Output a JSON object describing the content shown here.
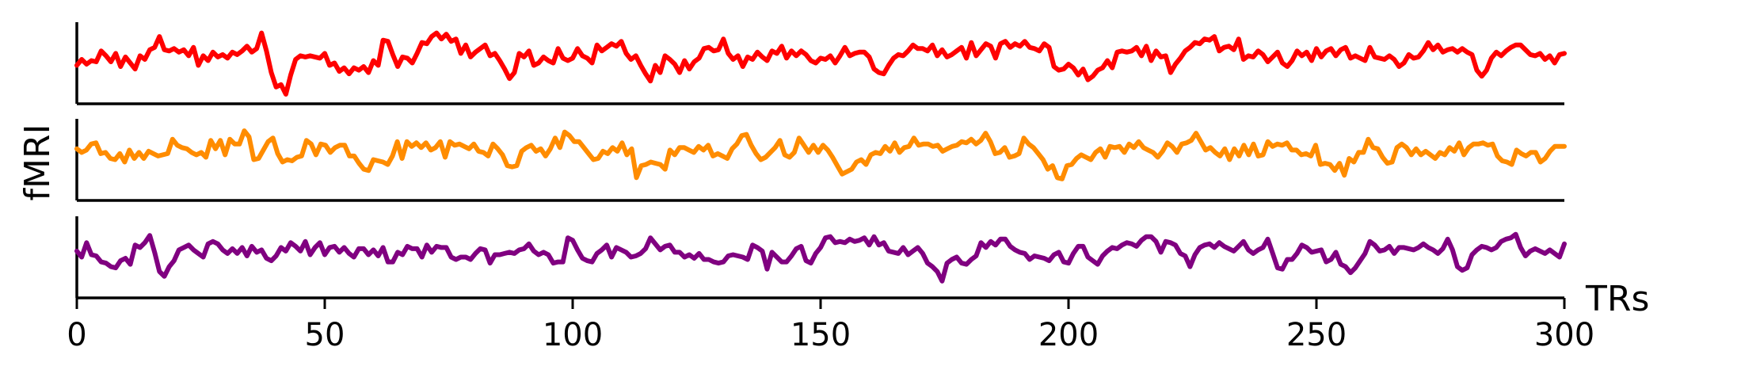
{
  "chart_data": {
    "type": "line",
    "ylabel": "fMRI",
    "xlabel": "TRs",
    "xlim": [
      0,
      300
    ],
    "x_ticks": [
      0,
      50,
      100,
      150,
      200,
      250,
      300
    ],
    "grid": false,
    "legend": "none",
    "ylim": [
      -3,
      3
    ],
    "series": [
      {
        "color": "#ff0000",
        "values": [
          -0.2,
          0.3,
          -0.1,
          0.2,
          0.1,
          1.0,
          0.6,
          0.1,
          0.8,
          -0.3,
          0.5,
          0.0,
          -0.5,
          0.6,
          0.3,
          1.1,
          1.3,
          2.2,
          1.1,
          1.0,
          1.2,
          0.9,
          1.1,
          0.6,
          1.3,
          -0.2,
          0.6,
          0.2,
          0.9,
          0.5,
          0.7,
          0.4,
          0.9,
          0.7,
          1.0,
          1.4,
          0.9,
          1.2,
          2.5,
          1.0,
          -0.8,
          -2.0,
          -1.8,
          -2.6,
          -1.0,
          0.3,
          0.6,
          0.5,
          0.6,
          0.5,
          0.4,
          0.8,
          -0.2,
          0.0,
          -0.7,
          -0.4,
          -0.9,
          -0.4,
          -0.6,
          -0.3,
          -0.8,
          0.2,
          -0.2,
          1.9,
          1.8,
          0.7,
          -0.3,
          0.5,
          0.4,
          0.0,
          0.8,
          1.7,
          1.6,
          2.2,
          2.5,
          2.0,
          2.4,
          1.8,
          2.0,
          0.8,
          1.5,
          0.5,
          0.9,
          1.2,
          1.5,
          0.6,
          0.8,
          0.2,
          -0.5,
          -1.3,
          -0.8,
          0.8,
          0.5,
          1.0,
          -0.2,
          0.0,
          0.5,
          0.2,
          0.0,
          1.2,
          0.4,
          0.2,
          0.4,
          1.2,
          0.6,
          0.4,
          0.0,
          1.5,
          1.0,
          1.3,
          1.6,
          1.4,
          1.8,
          0.8,
          0.3,
          0.6,
          -0.2,
          -0.9,
          -1.5,
          -0.2,
          -0.8,
          0.6,
          0.3,
          -0.1,
          -0.8,
          0.2,
          -0.5,
          0.1,
          0.4,
          1.2,
          1.3,
          1.0,
          1.1,
          2.0,
          0.8,
          0.3,
          0.6,
          -0.3,
          0.5,
          0.3,
          0.9,
          0.5,
          0.2,
          1.0,
          0.8,
          1.4,
          0.4,
          1.0,
          0.6,
          1.0,
          0.7,
          0.2,
          0.0,
          0.4,
          0.3,
          0.6,
          0.0,
          0.6,
          1.3,
          0.6,
          0.8,
          0.9,
          0.9,
          0.5,
          -0.5,
          -0.8,
          -0.9,
          -0.2,
          0.4,
          0.7,
          0.6,
          1.0,
          1.5,
          1.2,
          1.2,
          1.0,
          1.5,
          0.6,
          1.1,
          0.5,
          0.7,
          1.0,
          1.3,
          0.4,
          1.7,
          0.6,
          1.1,
          1.6,
          1.4,
          0.4,
          1.6,
          1.8,
          1.3,
          1.6,
          1.4,
          1.8,
          1.3,
          1.2,
          1.0,
          1.6,
          1.3,
          -0.3,
          -0.6,
          -0.5,
          -0.1,
          -0.4,
          -1.0,
          -0.5,
          -1.4,
          -1.1,
          -0.6,
          -0.4,
          0.2,
          -0.4,
          0.9,
          1.0,
          0.9,
          1.0,
          1.3,
          0.6,
          1.4,
          0.2,
          1.0,
          0.5,
          0.6,
          -0.8,
          -0.1,
          0.4,
          1.0,
          1.3,
          1.7,
          1.6,
          2.0,
          1.9,
          2.2,
          1.0,
          1.3,
          1.4,
          1.1,
          2.0,
          0.3,
          0.6,
          0.5,
          1.0,
          0.7,
          0.1,
          0.5,
          0.9,
          0.0,
          -0.3,
          0.2,
          1.0,
          0.6,
          0.9,
          0.2,
          1.2,
          0.5,
          1.0,
          1.2,
          0.6,
          1.1,
          1.3,
          0.4,
          0.6,
          0.4,
          0.2,
          1.3,
          0.5,
          0.4,
          0.3,
          0.6,
          0.3,
          -0.3,
          0.0,
          0.7,
          0.4,
          0.5,
          1.0,
          1.7,
          1.1,
          1.5,
          0.9,
          1.1,
          1.2,
          0.9,
          1.2,
          0.9,
          0.7,
          -0.6,
          -1.1,
          -0.6,
          0.4,
          0.9,
          0.6,
          1.0,
          1.3,
          1.5,
          1.5,
          1.1,
          0.7,
          0.6,
          0.8,
          0.3,
          0.6,
          0.0,
          0.7,
          0.8
        ]
      },
      {
        "color": "#ff8c00",
        "values": [
          0.9,
          0.6,
          0.8,
          1.3,
          1.4,
          0.5,
          0.6,
          0.1,
          0.0,
          0.5,
          -0.2,
          0.8,
          0.1,
          0.6,
          0.1,
          0.7,
          0.5,
          0.3,
          0.4,
          0.5,
          1.7,
          1.2,
          1.0,
          0.9,
          0.6,
          0.4,
          0.6,
          0.2,
          1.6,
          0.9,
          1.6,
          0.4,
          1.7,
          1.3,
          1.3,
          2.4,
          1.9,
          0.0,
          0.1,
          0.8,
          1.5,
          1.8,
          0.5,
          -0.2,
          0.0,
          -0.1,
          0.2,
          0.3,
          1.6,
          1.3,
          0.4,
          1.3,
          1.2,
          0.6,
          1.0,
          1.2,
          1.2,
          0.3,
          0.3,
          -0.3,
          -0.8,
          -0.9,
          0.0,
          -0.1,
          -0.2,
          -0.4,
          0.3,
          1.5,
          0.1,
          1.5,
          1.1,
          1.4,
          1.0,
          1.4,
          0.8,
          1.0,
          1.5,
          0.2,
          1.5,
          1.2,
          1.3,
          1.1,
          0.9,
          1.3,
          0.7,
          0.6,
          0.3,
          1.3,
          0.9,
          0.4,
          -0.5,
          -0.6,
          -0.5,
          0.7,
          1.0,
          1.2,
          0.7,
          0.9,
          0.3,
          0.9,
          1.8,
          1.0,
          2.3,
          2.0,
          1.5,
          1.5,
          1.0,
          0.5,
          0.0,
          0.1,
          0.7,
          0.5,
          1.0,
          0.7,
          1.4,
          0.4,
          0.9,
          -1.5,
          -0.5,
          -0.4,
          -0.2,
          -0.3,
          -0.4,
          -0.8,
          0.8,
          0.4,
          1.0,
          1.0,
          0.8,
          0.6,
          1.1,
          0.8,
          1.2,
          0.3,
          0.5,
          0.3,
          0.1,
          0.9,
          1.3,
          2.0,
          2.1,
          1.2,
          0.5,
          0.0,
          0.2,
          0.6,
          1.0,
          1.6,
          0.4,
          0.2,
          0.6,
          1.8,
          1.2,
          0.6,
          1.2,
          0.6,
          1.2,
          0.8,
          0.2,
          -0.5,
          -1.2,
          -1.0,
          -0.8,
          -0.2,
          0.0,
          -0.4,
          0.4,
          0.6,
          0.5,
          1.1,
          0.7,
          1.4,
          0.6,
          1.0,
          1.1,
          1.8,
          1.2,
          1.3,
          1.3,
          1.1,
          1.2,
          0.7,
          0.9,
          1.1,
          1.2,
          1.5,
          1.4,
          1.7,
          1.3,
          1.6,
          2.2,
          1.5,
          0.5,
          0.6,
          1.0,
          0.2,
          0.3,
          0.5,
          1.8,
          1.3,
          1.0,
          0.5,
          0.0,
          -0.8,
          -0.5,
          -1.5,
          -1.6,
          -0.5,
          -0.4,
          0.1,
          0.4,
          0.2,
          0.0,
          0.6,
          0.9,
          0.2,
          1.1,
          1.0,
          1.1,
          0.6,
          1.3,
          1.0,
          1.5,
          1.0,
          0.8,
          0.6,
          0.2,
          0.7,
          1.4,
          1.1,
          0.6,
          1.3,
          1.4,
          1.6,
          2.2,
          1.5,
          0.8,
          1.0,
          0.6,
          0.3,
          0.9,
          0.0,
          0.9,
          0.3,
          1.2,
          0.4,
          1.3,
          0.3,
          0.4,
          1.5,
          1.1,
          1.3,
          1.2,
          1.4,
          0.8,
          0.8,
          0.4,
          0.5,
          0.3,
          1.2,
          -0.4,
          -0.3,
          -0.4,
          -0.9,
          -0.3,
          -1.3,
          0.1,
          -0.2,
          0.6,
          0.6,
          1.7,
          1.0,
          0.9,
          0.2,
          -0.3,
          -0.2,
          1.0,
          1.3,
          1.0,
          0.4,
          0.9,
          0.4,
          0.7,
          0.4,
          0.1,
          0.6,
          0.4,
          1.0,
          0.7,
          1.4,
          0.4,
          1.0,
          1.3,
          1.3,
          1.4,
          1.2,
          1.3,
          0.3,
          -0.1,
          -0.2,
          -0.4,
          0.8,
          0.5,
          0.3,
          0.6,
          0.6,
          -0.2,
          0.1,
          0.7,
          1.1,
          1.1,
          1.1
        ]
      },
      {
        "color": "#800080",
        "values": [
          0.5,
          0.0,
          1.2,
          0.2,
          0.1,
          -0.4,
          -0.5,
          -0.8,
          -0.9,
          -0.3,
          -0.1,
          -0.6,
          1.0,
          0.8,
          1.2,
          1.8,
          0.4,
          -1.2,
          -1.6,
          -0.8,
          -0.3,
          0.6,
          0.8,
          1.0,
          0.6,
          0.3,
          0.0,
          1.1,
          1.3,
          1.1,
          0.6,
          0.3,
          0.7,
          0.3,
          0.8,
          0.1,
          0.9,
          0.4,
          0.6,
          -0.1,
          -0.3,
          0.1,
          0.8,
          0.5,
          1.2,
          0.9,
          0.5,
          1.3,
          0.2,
          0.8,
          1.2,
          0.2,
          0.8,
          0.9,
          0.4,
          0.8,
          0.3,
          0.0,
          0.7,
          0.7,
          0.2,
          0.6,
          0.1,
          0.8,
          -0.4,
          -0.4,
          0.4,
          0.2,
          0.9,
          0.7,
          0.7,
          0.0,
          1.0,
          0.4,
          0.9,
          0.8,
          0.8,
          0.0,
          -0.2,
          0.0,
          0.0,
          -0.2,
          0.3,
          0.7,
          0.6,
          -0.5,
          0.2,
          0.2,
          0.3,
          0.4,
          0.3,
          0.6,
          0.7,
          1.1,
          0.5,
          0.2,
          0.4,
          0.2,
          -0.5,
          -0.4,
          -0.4,
          1.6,
          1.4,
          0.6,
          -0.1,
          -0.3,
          -0.4,
          0.3,
          0.6,
          1.0,
          0.0,
          0.8,
          0.6,
          0.4,
          0.0,
          0.1,
          0.3,
          0.7,
          1.6,
          1.1,
          0.6,
          0.9,
          1.0,
          0.4,
          0.4,
          0.0,
          0.2,
          -0.1,
          0.3,
          -0.2,
          -0.2,
          -0.4,
          -0.5,
          -0.4,
          0.1,
          0.2,
          0.1,
          0.0,
          -0.2,
          1.0,
          0.8,
          0.5,
          -1.0,
          0.4,
          0.0,
          -0.4,
          -0.4,
          0.1,
          0.7,
          0.9,
          -0.3,
          -0.5,
          0.3,
          0.8,
          1.6,
          1.7,
          1.2,
          1.3,
          1.2,
          1.5,
          1.3,
          1.4,
          1.6,
          1.0,
          1.7,
          1.0,
          1.2,
          0.5,
          0.4,
          0.3,
          0.8,
          0.2,
          0.5,
          0.8,
          0.3,
          -0.5,
          -0.8,
          -1.2,
          -2.0,
          -0.5,
          -0.2,
          0.0,
          -0.5,
          -0.6,
          -0.2,
          0.1,
          1.2,
          0.8,
          1.3,
          1.0,
          1.5,
          1.5,
          0.9,
          0.6,
          0.4,
          0.3,
          -0.2,
          0.1,
          0.0,
          -0.1,
          -0.3,
          0.2,
          0.4,
          -0.4,
          -0.5,
          0.3,
          0.9,
          0.9,
          0.0,
          -0.3,
          -0.6,
          0.1,
          0.5,
          0.8,
          0.7,
          1.0,
          1.2,
          1.1,
          0.9,
          1.4,
          1.7,
          1.7,
          1.3,
          0.4,
          1.3,
          1.2,
          1.0,
          0.3,
          0.1,
          -0.8,
          0.2,
          0.8,
          1.0,
          1.1,
          0.8,
          1.2,
          0.9,
          0.7,
          0.5,
          0.9,
          1.3,
          0.6,
          0.3,
          0.6,
          0.8,
          1.5,
          0.3,
          -0.9,
          -1.0,
          -0.2,
          -0.2,
          0.3,
          1.0,
          0.8,
          0.4,
          0.5,
          0.6,
          -0.4,
          -0.2,
          0.4,
          -0.6,
          -0.8,
          -1.3,
          -0.9,
          -0.3,
          0.3,
          1.3,
          1.0,
          0.5,
          0.6,
          0.9,
          0.3,
          0.8,
          0.8,
          0.7,
          0.6,
          0.8,
          1.1,
          0.8,
          0.6,
          0.3,
          0.7,
          1.5,
          0.6,
          -0.8,
          -1.1,
          -0.9,
          0.2,
          0.6,
          0.9,
          0.8,
          0.6,
          0.8,
          1.3,
          1.5,
          1.6,
          1.9,
          0.8,
          0.1,
          0.5,
          0.7,
          0.5,
          0.3,
          0.6,
          0.3,
          0.0,
          1.1
        ]
      }
    ]
  }
}
